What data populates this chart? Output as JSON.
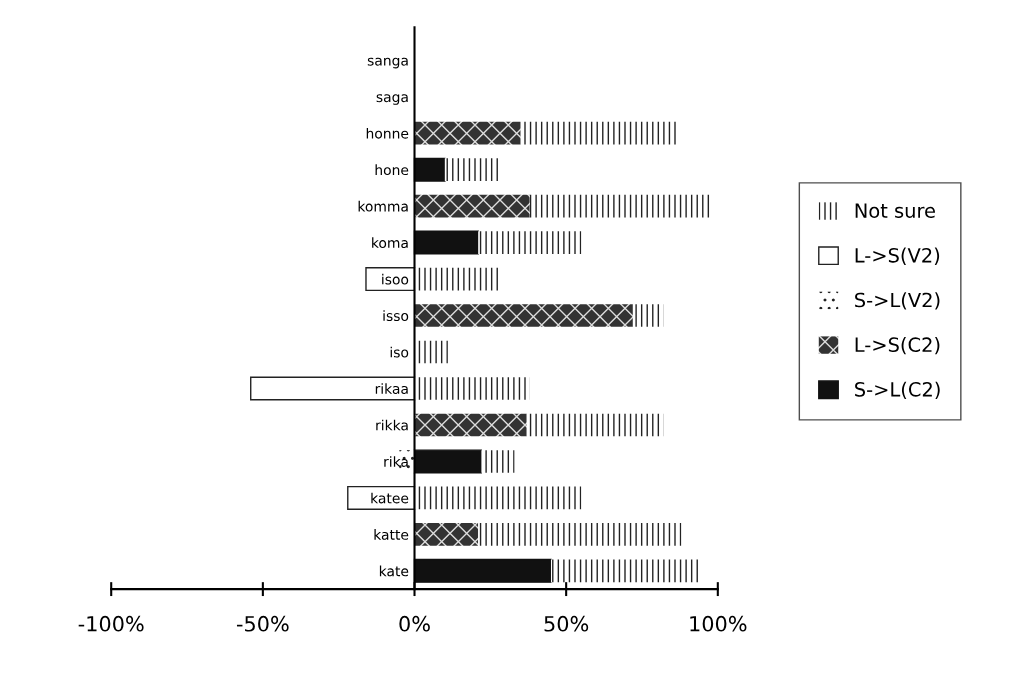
{
  "chart_data": {
    "type": "bar",
    "orientation": "horizontal",
    "stacked": true,
    "categories": [
      "sanga",
      "saga",
      "honne",
      "hone",
      "komma",
      "koma",
      "isoo",
      "isso",
      "iso",
      "rikaa",
      "rikka",
      "rika",
      "katee",
      "katte",
      "kate"
    ],
    "series": [
      {
        "name": "S->L(C2)",
        "color": "#111111",
        "values": [
          null,
          null,
          null,
          10,
          null,
          21,
          null,
          null,
          null,
          null,
          null,
          22,
          null,
          null,
          45
        ]
      },
      {
        "name": "L->S(C2)",
        "color": "#333333",
        "values": [
          null,
          null,
          35,
          null,
          38,
          null,
          null,
          72,
          null,
          null,
          37,
          null,
          null,
          21,
          null
        ]
      },
      {
        "name": "S->L(V2)",
        "color": "#ffffff",
        "values": [
          null,
          null,
          null,
          null,
          null,
          null,
          null,
          null,
          null,
          null,
          null,
          -5,
          null,
          null,
          null
        ]
      },
      {
        "name": "L->S(V2)",
        "color": "#ffffff",
        "values": [
          null,
          null,
          null,
          null,
          null,
          null,
          -16,
          null,
          null,
          -54,
          null,
          null,
          -22,
          null,
          null
        ]
      },
      {
        "name": "Not sure",
        "color": "#ffffff",
        "values": [
          null,
          null,
          52,
          18,
          60,
          34,
          28,
          10,
          11,
          38,
          45,
          11,
          55,
          67,
          49
        ]
      }
    ],
    "xlim": [
      -100,
      100
    ],
    "xticks": [
      {
        "value": -100,
        "label": "-100%"
      },
      {
        "value": -50,
        "label": "-50%"
      },
      {
        "value": 0,
        "label": "0%"
      },
      {
        "value": 50,
        "label": "50%"
      },
      {
        "value": 100,
        "label": "100%"
      }
    ],
    "grid": false,
    "legend": "right"
  }
}
